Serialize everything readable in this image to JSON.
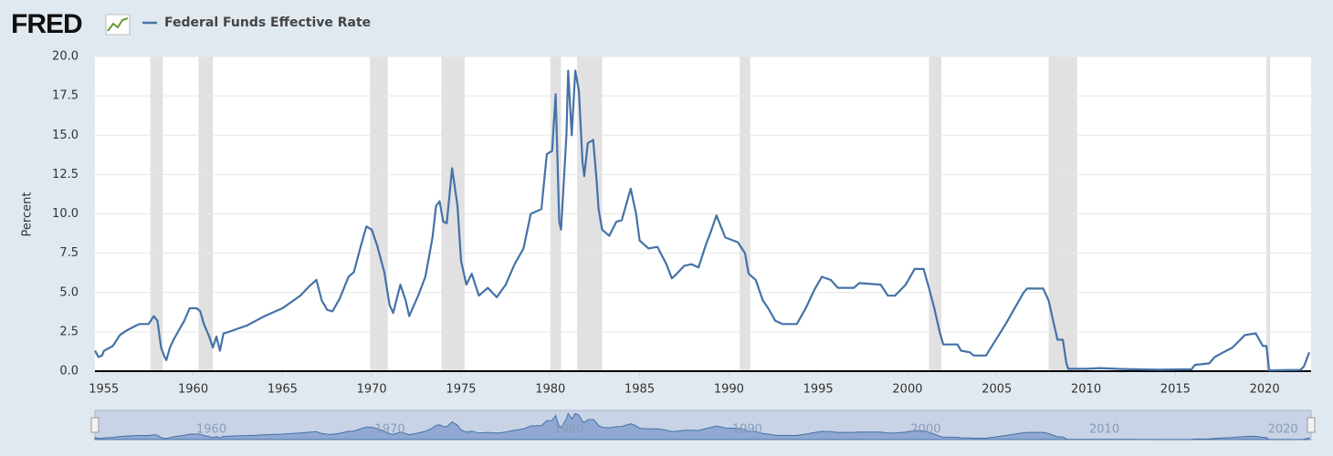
{
  "brand": "FRED",
  "chart_data": {
    "type": "line",
    "y_label": "Percent",
    "series": [
      {
        "name": "Federal Funds Effective Rate",
        "color": "#4572a7",
        "x": [
          1954.5,
          1954.7,
          1954.9,
          1955.0,
          1955.5,
          1955.9,
          1956.3,
          1956.8,
          1957.0,
          1957.5,
          1957.8,
          1958.0,
          1958.2,
          1958.4,
          1958.5,
          1958.7,
          1958.9,
          1959.2,
          1959.5,
          1959.8,
          1960.2,
          1960.4,
          1960.6,
          1960.9,
          1961.1,
          1961.3,
          1961.5,
          1961.7,
          1962.0,
          1962.5,
          1963.0,
          1963.5,
          1964.0,
          1965.0,
          1966.0,
          1966.5,
          1966.9,
          1967.2,
          1967.5,
          1967.8,
          1968.2,
          1968.7,
          1969.0,
          1969.4,
          1969.7,
          1970.0,
          1970.3,
          1970.7,
          1971.0,
          1971.2,
          1971.6,
          1971.9,
          1972.1,
          1972.6,
          1973.0,
          1973.4,
          1973.6,
          1973.8,
          1974.0,
          1974.2,
          1974.5,
          1974.8,
          1975.0,
          1975.3,
          1975.6,
          1976.0,
          1976.5,
          1977.0,
          1977.5,
          1978.0,
          1978.5,
          1978.9,
          1979.5,
          1979.8,
          1980.1,
          1980.3,
          1980.5,
          1980.6,
          1980.9,
          1981.0,
          1981.2,
          1981.4,
          1981.6,
          1981.8,
          1981.9,
          1982.1,
          1982.4,
          1982.6,
          1982.7,
          1982.9,
          1983.3,
          1983.7,
          1984.0,
          1984.5,
          1984.8,
          1985.0,
          1985.5,
          1986.0,
          1986.5,
          1986.8,
          1987.0,
          1987.5,
          1987.9,
          1988.3,
          1988.7,
          1989.0,
          1989.3,
          1989.8,
          1990.5,
          1990.9,
          1991.1,
          1991.5,
          1991.9,
          1992.2,
          1992.6,
          1993.0,
          1993.8,
          1994.3,
          1994.8,
          1995.2,
          1995.7,
          1996.1,
          1997.0,
          1997.3,
          1998.5,
          1998.9,
          1999.3,
          1999.9,
          2000.4,
          2000.9,
          2001.2,
          2001.5,
          2001.8,
          2002.0,
          2002.8,
          2003.0,
          2003.5,
          2003.7,
          2004.4,
          2005.5,
          2006.5,
          2006.7,
          2007.6,
          2007.9,
          2008.2,
          2008.4,
          2008.7,
          2008.9,
          2009.0,
          2010.0,
          2010.8,
          2012.0,
          2014.0,
          2015.9,
          2016.1,
          2016.9,
          2017.2,
          2017.6,
          2018.2,
          2018.9,
          2019.5,
          2019.7,
          2019.9,
          2020.1,
          2020.25,
          2022.0,
          2022.2,
          2022.5
        ],
        "values": [
          1.3,
          0.9,
          1.0,
          1.3,
          1.6,
          2.3,
          2.6,
          2.9,
          3.0,
          3.0,
          3.5,
          3.2,
          1.5,
          0.9,
          0.7,
          1.5,
          2.0,
          2.6,
          3.2,
          4.0,
          4.0,
          3.8,
          3.0,
          2.2,
          1.5,
          2.2,
          1.3,
          2.4,
          2.5,
          2.7,
          2.9,
          3.2,
          3.5,
          4.0,
          4.8,
          5.4,
          5.8,
          4.5,
          3.9,
          3.8,
          4.6,
          6.0,
          6.3,
          8.0,
          9.2,
          9.0,
          8.0,
          6.3,
          4.2,
          3.7,
          5.5,
          4.5,
          3.5,
          4.8,
          6.0,
          8.5,
          10.5,
          10.8,
          9.5,
          9.4,
          12.9,
          10.5,
          7.0,
          5.5,
          6.2,
          4.8,
          5.3,
          4.7,
          5.5,
          6.8,
          7.8,
          10.0,
          10.3,
          13.8,
          14.0,
          17.6,
          9.5,
          9.0,
          15.0,
          19.1,
          15.0,
          19.1,
          17.8,
          13.3,
          12.4,
          14.5,
          14.7,
          12.0,
          10.3,
          9.0,
          8.6,
          9.5,
          9.6,
          11.6,
          10.0,
          8.3,
          7.8,
          7.9,
          6.8,
          5.9,
          6.1,
          6.7,
          6.8,
          6.6,
          8.0,
          8.9,
          9.9,
          8.5,
          8.2,
          7.5,
          6.2,
          5.8,
          4.5,
          4.0,
          3.2,
          3.0,
          3.0,
          4.0,
          5.2,
          6.0,
          5.8,
          5.3,
          5.3,
          5.6,
          5.5,
          4.8,
          4.8,
          5.5,
          6.5,
          6.5,
          5.3,
          4.0,
          2.5,
          1.7,
          1.7,
          1.3,
          1.2,
          1.0,
          1.0,
          3.0,
          5.0,
          5.25,
          5.25,
          4.5,
          3.0,
          2.0,
          2.0,
          0.5,
          0.15,
          0.15,
          0.2,
          0.14,
          0.09,
          0.12,
          0.4,
          0.5,
          0.9,
          1.15,
          1.5,
          2.3,
          2.4,
          2.0,
          1.6,
          1.6,
          0.05,
          0.08,
          0.3,
          1.2
        ]
      }
    ],
    "recessions": [
      {
        "start": 1957.6,
        "end": 1958.3
      },
      {
        "start": 1960.3,
        "end": 1961.1
      },
      {
        "start": 1969.9,
        "end": 1970.9
      },
      {
        "start": 1973.9,
        "end": 1975.2
      },
      {
        "start": 1980.0,
        "end": 1980.6
      },
      {
        "start": 1981.5,
        "end": 1982.9
      },
      {
        "start": 1990.6,
        "end": 1991.2
      },
      {
        "start": 2001.2,
        "end": 2001.9
      },
      {
        "start": 2007.9,
        "end": 2009.5
      },
      {
        "start": 2020.1,
        "end": 2020.3
      }
    ],
    "xlim": [
      1954.5,
      2022.6
    ],
    "xticks": [
      1955,
      1960,
      1965,
      1970,
      1975,
      1980,
      1985,
      1990,
      1995,
      2000,
      2005,
      2010,
      2015,
      2020
    ],
    "ylim": [
      0,
      20
    ],
    "yticks": [
      {
        "value": 0,
        "label": "0.0"
      },
      {
        "value": 2.5,
        "label": "2.5"
      },
      {
        "value": 5,
        "label": "5.0"
      },
      {
        "value": 7.5,
        "label": "7.5"
      },
      {
        "value": 10,
        "label": "10.0"
      },
      {
        "value": 12.5,
        "label": "12.5"
      },
      {
        "value": 15,
        "label": "15.0"
      },
      {
        "value": 17.5,
        "label": "17.5"
      },
      {
        "value": 20,
        "label": "20.0"
      }
    ],
    "grid": true,
    "recession_color": "#e1e1e1",
    "navigator_ticks": [
      1960,
      1970,
      1980,
      1990,
      2000,
      2010,
      2020
    ]
  }
}
